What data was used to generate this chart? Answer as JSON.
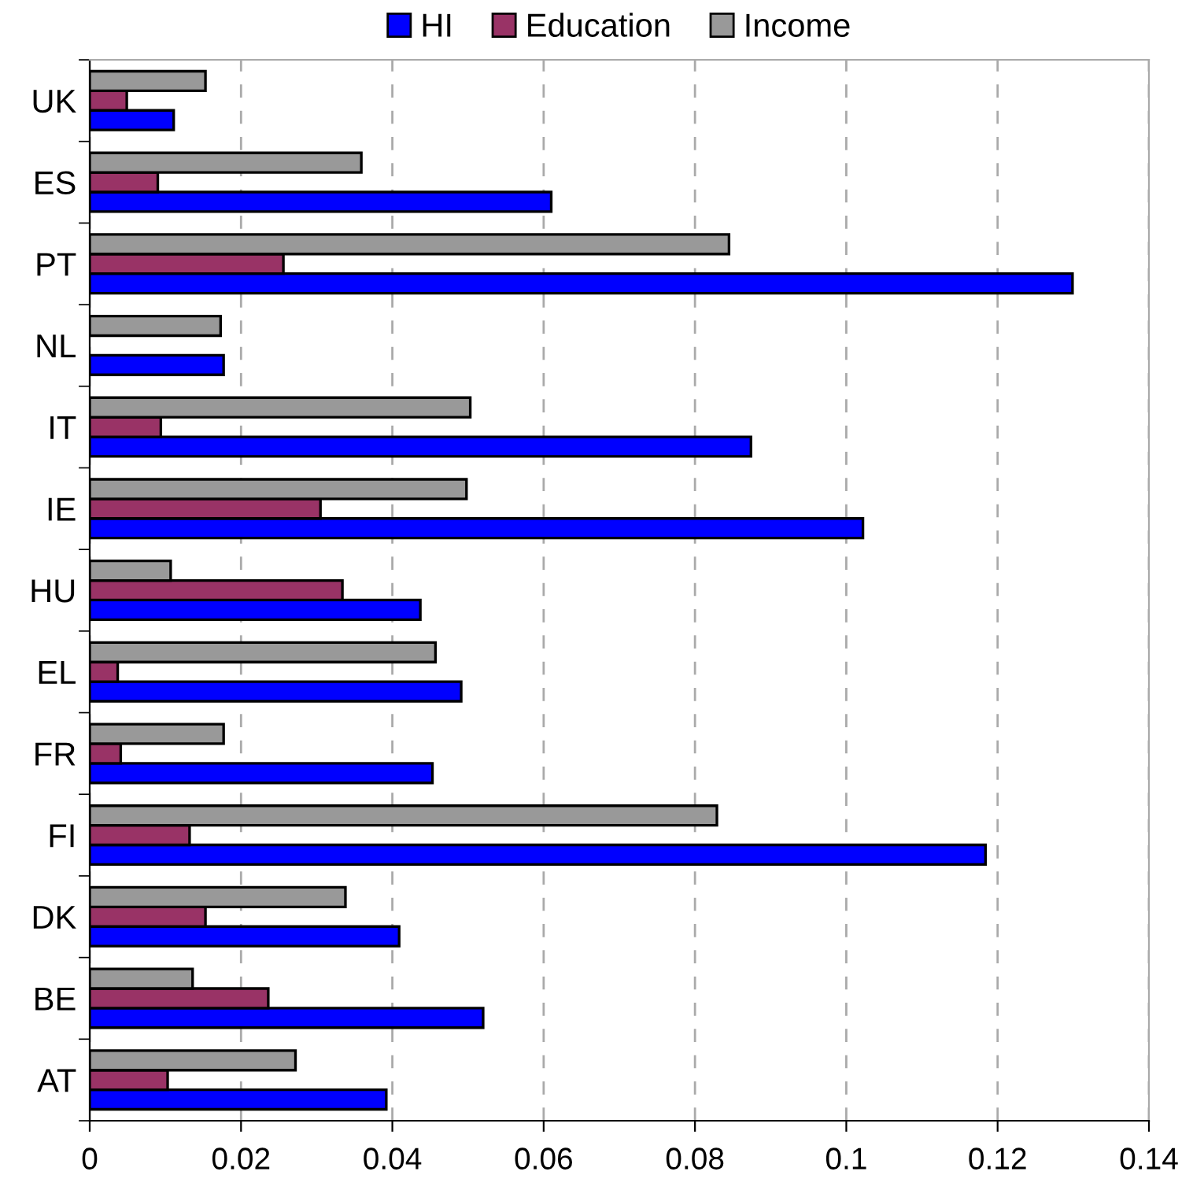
{
  "chart_data": {
    "type": "bar",
    "orientation": "horizontal",
    "categories": [
      "UK",
      "ES",
      "PT",
      "NL",
      "IT",
      "IE",
      "HU",
      "EL",
      "FR",
      "FI",
      "DK",
      "BE",
      "AT"
    ],
    "series": [
      {
        "name": "HI",
        "color": "#0000ff",
        "values": [
          0.0111,
          0.061,
          0.1299,
          0.0177,
          0.0874,
          0.1022,
          0.0437,
          0.0491,
          0.0453,
          0.1184,
          0.0409,
          0.052,
          0.0392
        ]
      },
      {
        "name": "Education",
        "color": "#993366",
        "values": [
          0.0049,
          0.009,
          0.0256,
          null,
          0.0094,
          0.0305,
          0.0334,
          0.0037,
          0.0041,
          0.0132,
          0.0153,
          0.0236,
          0.0103
        ]
      },
      {
        "name": "Income",
        "color": "#999999",
        "values": [
          0.0153,
          0.0359,
          0.0845,
          0.0173,
          0.0503,
          0.0498,
          0.0107,
          0.0457,
          0.0177,
          0.0829,
          0.0338,
          0.0136,
          0.0272
        ]
      }
    ],
    "xlim": [
      0,
      0.14
    ],
    "xticks": [
      0,
      0.02,
      0.04,
      0.06,
      0.08,
      {
        "value": 0.1,
        "label": "0.1"
      },
      0.12,
      0.14
    ],
    "grid": "x",
    "legend": "top"
  }
}
